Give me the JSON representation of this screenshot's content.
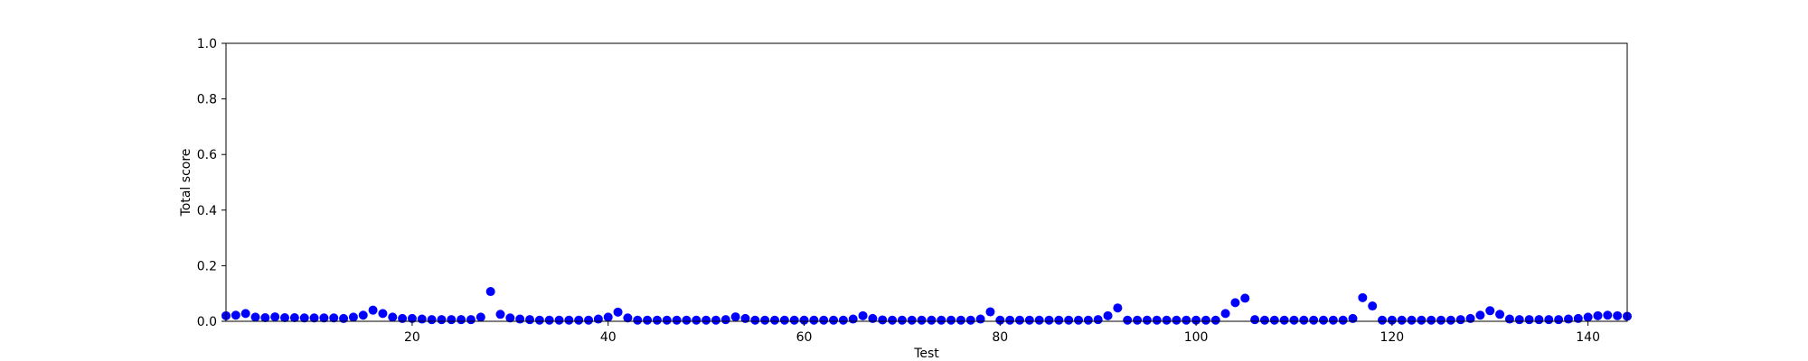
{
  "chart_data": {
    "type": "scatter",
    "xlabel": "Test",
    "ylabel": "Total score",
    "xlim": [
      1,
      144
    ],
    "ylim": [
      0,
      1
    ],
    "xticks": [
      20,
      40,
      60,
      80,
      100,
      120,
      140
    ],
    "yticks": [
      0.0,
      0.2,
      0.4,
      0.6,
      0.8,
      1.0
    ],
    "xtick_labels": [
      "20",
      "40",
      "60",
      "80",
      "100",
      "120",
      "140"
    ],
    "ytick_labels": [
      "0.0",
      "0.2",
      "0.4",
      "0.6",
      "0.8",
      "1.0"
    ],
    "grid": false,
    "marker_color": "#0000ff",
    "series": [
      {
        "x": [
          1,
          2,
          3,
          4,
          5,
          6,
          7,
          8,
          9,
          10,
          11,
          12,
          13,
          14,
          15,
          16,
          17,
          18,
          19,
          20,
          21,
          22,
          23,
          24,
          25,
          26,
          27,
          28,
          29,
          30,
          31,
          32,
          33,
          34,
          35,
          36,
          37,
          38,
          39,
          40,
          41,
          42,
          43,
          44,
          45,
          46,
          47,
          48,
          49,
          50,
          51,
          52,
          53,
          54,
          55,
          56,
          57,
          58,
          59,
          60,
          61,
          62,
          63,
          64,
          65,
          66,
          67,
          68,
          69,
          70,
          71,
          72,
          73,
          74,
          75,
          76,
          77,
          78,
          79,
          80,
          81,
          82,
          83,
          84,
          85,
          86,
          87,
          88,
          89,
          90,
          91,
          92,
          93,
          94,
          95,
          96,
          97,
          98,
          99,
          100,
          101,
          102,
          103,
          104,
          105,
          106,
          107,
          108,
          109,
          110,
          111,
          112,
          113,
          114,
          115,
          116,
          117,
          118,
          119,
          120,
          121,
          122,
          123,
          124,
          125,
          126,
          127,
          128,
          129,
          130,
          131,
          132,
          133,
          134,
          135,
          136,
          137,
          138,
          139,
          140,
          141,
          142,
          143,
          144
        ],
        "y": [
          0.02,
          0.022,
          0.028,
          0.015,
          0.013,
          0.016,
          0.013,
          0.013,
          0.012,
          0.012,
          0.012,
          0.012,
          0.01,
          0.015,
          0.022,
          0.04,
          0.028,
          0.015,
          0.01,
          0.01,
          0.008,
          0.006,
          0.006,
          0.006,
          0.006,
          0.006,
          0.015,
          0.107,
          0.025,
          0.012,
          0.008,
          0.006,
          0.004,
          0.004,
          0.004,
          0.004,
          0.004,
          0.004,
          0.008,
          0.015,
          0.033,
          0.012,
          0.004,
          0.004,
          0.004,
          0.004,
          0.004,
          0.004,
          0.004,
          0.004,
          0.004,
          0.006,
          0.016,
          0.01,
          0.004,
          0.004,
          0.004,
          0.004,
          0.004,
          0.004,
          0.004,
          0.004,
          0.004,
          0.004,
          0.008,
          0.02,
          0.01,
          0.005,
          0.004,
          0.004,
          0.004,
          0.004,
          0.004,
          0.004,
          0.004,
          0.004,
          0.004,
          0.008,
          0.034,
          0.004,
          0.004,
          0.004,
          0.004,
          0.004,
          0.004,
          0.004,
          0.004,
          0.004,
          0.004,
          0.006,
          0.02,
          0.048,
          0.004,
          0.004,
          0.004,
          0.004,
          0.004,
          0.004,
          0.004,
          0.004,
          0.004,
          0.004,
          0.028,
          0.067,
          0.083,
          0.006,
          0.004,
          0.004,
          0.004,
          0.004,
          0.004,
          0.004,
          0.004,
          0.004,
          0.004,
          0.01,
          0.085,
          0.055,
          0.004,
          0.004,
          0.004,
          0.004,
          0.004,
          0.004,
          0.004,
          0.004,
          0.006,
          0.01,
          0.022,
          0.038,
          0.025,
          0.008,
          0.006,
          0.006,
          0.006,
          0.006,
          0.006,
          0.008,
          0.01,
          0.015,
          0.02,
          0.022,
          0.02,
          0.018
        ]
      }
    ]
  }
}
